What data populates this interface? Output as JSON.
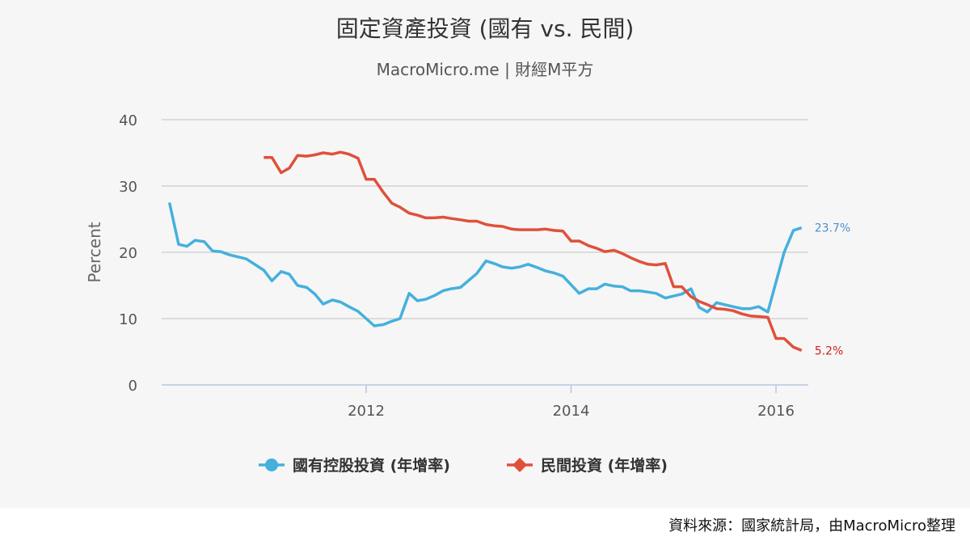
{
  "colors": {
    "state": "#45b0dc",
    "private": "#e0503b",
    "grid": "#d4d4d4",
    "axis": "#b8c7e0",
    "state_label": "#4a90d0",
    "private_label": "#d02020"
  },
  "footer": {
    "source": "資料來源：國家統計局，由MacroMicro整理"
  },
  "chart_data": {
    "type": "line",
    "title": "固定資產投資 (國有 vs. 民間)",
    "subtitle": "MacroMicro.me | 財經M平方",
    "ylabel": "Percent",
    "xlabel": "",
    "ylim": [
      0,
      40
    ],
    "xlim": [
      2010.0,
      2016.17
    ],
    "grid": true,
    "yticks": [
      "0",
      "10",
      "20",
      "30",
      "40"
    ],
    "xticks": [
      "2012",
      "2014",
      "2016"
    ],
    "legend_position": "bottom-center",
    "series": [
      {
        "name": "國有控股投資 (年增率)",
        "color": "state",
        "marker": "circle",
        "end_label": "23.7%",
        "points": [
          [
            2010.08,
            27.5
          ],
          [
            2010.17,
            21.2
          ],
          [
            2010.25,
            20.9
          ],
          [
            2010.33,
            21.8
          ],
          [
            2010.42,
            21.6
          ],
          [
            2010.5,
            20.2
          ],
          [
            2010.58,
            20.1
          ],
          [
            2010.67,
            19.6
          ],
          [
            2010.75,
            19.3
          ],
          [
            2010.83,
            19.0
          ],
          [
            2011.0,
            17.3
          ],
          [
            2011.08,
            15.7
          ],
          [
            2011.17,
            17.1
          ],
          [
            2011.25,
            16.7
          ],
          [
            2011.33,
            15.0
          ],
          [
            2011.42,
            14.7
          ],
          [
            2011.5,
            13.7
          ],
          [
            2011.58,
            12.2
          ],
          [
            2011.67,
            12.8
          ],
          [
            2011.75,
            12.5
          ],
          [
            2011.83,
            11.8
          ],
          [
            2011.92,
            11.1
          ],
          [
            2012.0,
            10.0
          ],
          [
            2012.08,
            8.9
          ],
          [
            2012.17,
            9.1
          ],
          [
            2012.25,
            9.6
          ],
          [
            2012.33,
            10.0
          ],
          [
            2012.42,
            13.8
          ],
          [
            2012.5,
            12.7
          ],
          [
            2012.58,
            12.9
          ],
          [
            2012.67,
            13.5
          ],
          [
            2012.75,
            14.2
          ],
          [
            2012.83,
            14.5
          ],
          [
            2012.92,
            14.7
          ],
          [
            2013.08,
            16.8
          ],
          [
            2013.17,
            18.7
          ],
          [
            2013.25,
            18.3
          ],
          [
            2013.33,
            17.8
          ],
          [
            2013.42,
            17.6
          ],
          [
            2013.5,
            17.8
          ],
          [
            2013.58,
            18.2
          ],
          [
            2013.67,
            17.7
          ],
          [
            2013.75,
            17.2
          ],
          [
            2013.83,
            16.9
          ],
          [
            2013.92,
            16.4
          ],
          [
            2014.08,
            13.8
          ],
          [
            2014.17,
            14.5
          ],
          [
            2014.25,
            14.5
          ],
          [
            2014.33,
            15.2
          ],
          [
            2014.42,
            14.9
          ],
          [
            2014.5,
            14.8
          ],
          [
            2014.58,
            14.2
          ],
          [
            2014.67,
            14.2
          ],
          [
            2014.75,
            14.0
          ],
          [
            2014.83,
            13.8
          ],
          [
            2014.92,
            13.1
          ],
          [
            2015.0,
            13.4
          ],
          [
            2015.08,
            13.7
          ],
          [
            2015.17,
            14.5
          ],
          [
            2015.25,
            11.7
          ],
          [
            2015.33,
            11.0
          ],
          [
            2015.42,
            12.4
          ],
          [
            2015.5,
            12.1
          ],
          [
            2015.58,
            11.8
          ],
          [
            2015.67,
            11.5
          ],
          [
            2015.75,
            11.5
          ],
          [
            2015.83,
            11.8
          ],
          [
            2015.92,
            11.0
          ],
          [
            2016.08,
            20.0
          ],
          [
            2016.17,
            23.3
          ],
          [
            2016.25,
            23.7
          ]
        ]
      },
      {
        "name": "民間投資 (年增率)",
        "color": "private",
        "marker": "diamond",
        "end_label": "5.2%",
        "points": [
          [
            2011.0,
            34.3
          ],
          [
            2011.08,
            34.3
          ],
          [
            2011.17,
            32.0
          ],
          [
            2011.25,
            32.7
          ],
          [
            2011.33,
            34.6
          ],
          [
            2011.42,
            34.5
          ],
          [
            2011.5,
            34.7
          ],
          [
            2011.58,
            35.0
          ],
          [
            2011.67,
            34.8
          ],
          [
            2011.75,
            35.1
          ],
          [
            2011.83,
            34.8
          ],
          [
            2011.92,
            34.2
          ],
          [
            2012.0,
            31.0
          ],
          [
            2012.08,
            31.0
          ],
          [
            2012.17,
            29.0
          ],
          [
            2012.25,
            27.4
          ],
          [
            2012.33,
            26.8
          ],
          [
            2012.42,
            25.9
          ],
          [
            2012.5,
            25.6
          ],
          [
            2012.58,
            25.2
          ],
          [
            2012.67,
            25.2
          ],
          [
            2012.75,
            25.3
          ],
          [
            2012.83,
            25.1
          ],
          [
            2012.92,
            24.9
          ],
          [
            2013.0,
            24.7
          ],
          [
            2013.08,
            24.7
          ],
          [
            2013.17,
            24.2
          ],
          [
            2013.25,
            24.0
          ],
          [
            2013.33,
            23.9
          ],
          [
            2013.42,
            23.5
          ],
          [
            2013.5,
            23.4
          ],
          [
            2013.58,
            23.4
          ],
          [
            2013.67,
            23.4
          ],
          [
            2013.75,
            23.5
          ],
          [
            2013.83,
            23.3
          ],
          [
            2013.92,
            23.2
          ],
          [
            2014.0,
            21.7
          ],
          [
            2014.08,
            21.7
          ],
          [
            2014.17,
            21.0
          ],
          [
            2014.25,
            20.6
          ],
          [
            2014.33,
            20.1
          ],
          [
            2014.42,
            20.3
          ],
          [
            2014.5,
            19.8
          ],
          [
            2014.58,
            19.2
          ],
          [
            2014.67,
            18.6
          ],
          [
            2014.75,
            18.2
          ],
          [
            2014.83,
            18.1
          ],
          [
            2014.92,
            18.3
          ],
          [
            2015.0,
            14.8
          ],
          [
            2015.08,
            14.8
          ],
          [
            2015.17,
            13.3
          ],
          [
            2015.25,
            12.6
          ],
          [
            2015.33,
            12.1
          ],
          [
            2015.42,
            11.5
          ],
          [
            2015.5,
            11.4
          ],
          [
            2015.58,
            11.2
          ],
          [
            2015.67,
            10.7
          ],
          [
            2015.75,
            10.4
          ],
          [
            2015.83,
            10.3
          ],
          [
            2015.92,
            10.2
          ],
          [
            2016.0,
            7.0
          ],
          [
            2016.08,
            7.0
          ],
          [
            2016.17,
            5.7
          ],
          [
            2016.25,
            5.2
          ]
        ]
      }
    ]
  }
}
